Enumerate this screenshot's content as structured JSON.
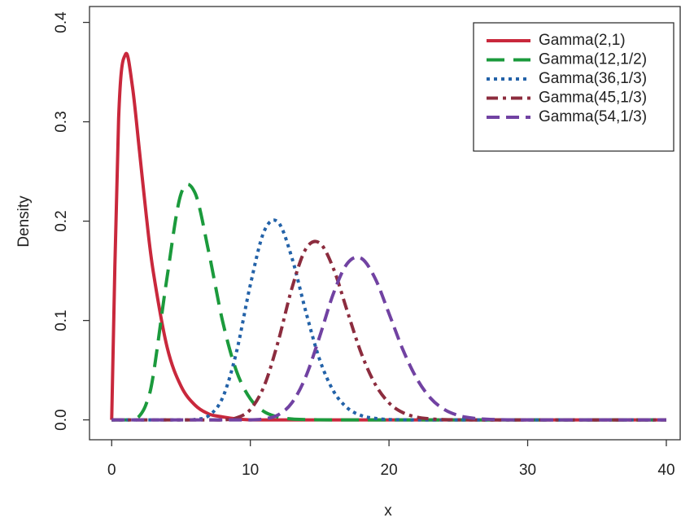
{
  "chart_data": {
    "type": "line",
    "x_label": "x",
    "y_label": "Density",
    "xlim": [
      -1.6,
      41
    ],
    "ylim": [
      -0.02,
      0.416
    ],
    "xticks": [
      0,
      10,
      20,
      30,
      40
    ],
    "yticks": [
      {
        "value": 0,
        "label": "0.0"
      },
      0.1,
      0.2,
      0.3,
      0.4
    ],
    "legend_position": "top-right",
    "x": [
      0,
      0.5,
      1,
      1.5,
      2,
      2.5,
      3,
      4,
      5,
      6,
      7,
      8,
      9,
      10,
      11,
      12,
      13,
      14,
      15,
      16,
      17,
      18,
      19,
      20,
      21,
      22,
      23,
      24,
      25,
      26,
      27,
      28,
      29,
      30,
      31,
      32,
      33,
      34,
      35,
      36,
      37,
      38,
      39,
      40
    ],
    "series": [
      {
        "name": "Gamma(2,1)",
        "color": "#c9283c",
        "linestyle": "solid",
        "values": [
          0,
          0.303,
          0.368,
          0.335,
          0.271,
          0.205,
          0.149,
          0.073,
          0.034,
          0.015,
          0.006,
          0.003,
          0.001,
          0,
          0,
          0,
          0,
          0,
          0,
          0,
          0,
          0,
          0,
          0,
          0,
          0,
          0,
          0,
          0,
          0,
          0,
          0,
          0,
          0,
          0,
          0,
          0,
          0,
          0,
          0,
          0,
          0,
          0,
          0
        ]
      },
      {
        "name": "Gamma(12,1/2)",
        "color": "#1b9a3c",
        "linestyle": "longdash",
        "values": [
          0,
          0,
          0,
          0.0004,
          0.0039,
          0.0165,
          0.0451,
          0.144,
          0.2275,
          0.2287,
          0.169,
          0.0992,
          0.0491,
          0.0212,
          0.0082,
          0.0029,
          0.0009,
          0.0003,
          0.0001,
          0,
          0,
          0,
          0,
          0,
          0,
          0,
          0,
          0,
          0,
          0,
          0,
          0,
          0,
          0,
          0,
          0,
          0,
          0,
          0,
          0,
          0,
          0,
          0,
          0
        ]
      },
      {
        "name": "Gamma(36,1/3)",
        "color": "#2362a8",
        "linestyle": "dotted",
        "values": [
          0,
          0,
          0,
          0,
          0,
          0,
          0,
          0,
          0,
          0.0004,
          0.0042,
          0.0223,
          0.0683,
          0.1359,
          0.19,
          0.199,
          0.163,
          0.109,
          0.0606,
          0.0289,
          0.012,
          0.0044,
          0.0015,
          0.0004,
          0.0001,
          0,
          0,
          0,
          0,
          0,
          0,
          0,
          0,
          0,
          0,
          0,
          0,
          0,
          0,
          0,
          0,
          0,
          0,
          0
        ]
      },
      {
        "name": "Gamma(45,1/3)",
        "color": "#8c2c3e",
        "linestyle": "dashdot",
        "values": [
          0,
          0,
          0,
          0,
          0,
          0,
          0,
          0,
          0,
          0,
          0,
          0,
          0.002,
          0.0104,
          0.0343,
          0.0785,
          0.1326,
          0.172,
          0.178,
          0.152,
          0.109,
          0.067,
          0.036,
          0.0171,
          0.0073,
          0.0028,
          0.001,
          0.0003,
          0.0001,
          0,
          0,
          0,
          0,
          0,
          0,
          0,
          0,
          0,
          0,
          0,
          0,
          0,
          0,
          0
        ]
      },
      {
        "name": "Gamma(54,1/3)",
        "color": "#7142a2",
        "linestyle": "dash",
        "values": [
          0,
          0,
          0,
          0,
          0,
          0,
          0,
          0,
          0,
          0,
          0,
          0,
          0,
          0,
          0.001,
          0.005,
          0.0172,
          0.0435,
          0.0839,
          0.1275,
          0.1575,
          0.1626,
          0.1424,
          0.107,
          0.0707,
          0.0416,
          0.0218,
          0.0104,
          0.0045,
          0.0018,
          0.0007,
          0.0002,
          0,
          0,
          0,
          0,
          0,
          0,
          0,
          0,
          0,
          0,
          0,
          0
        ]
      }
    ]
  }
}
